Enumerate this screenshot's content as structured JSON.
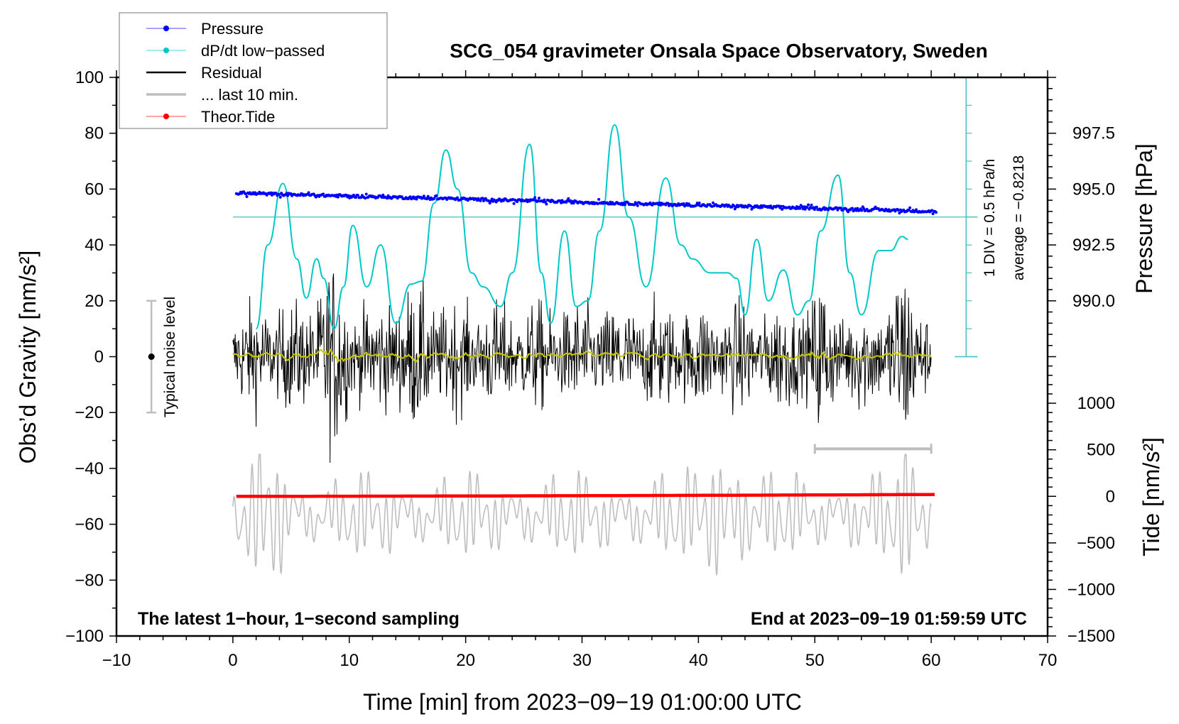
{
  "chart_data": {
    "type": "line",
    "title": "SCG_054 gravimeter Onsala Space Observatory, Sweden",
    "xlabel": "Time [min] from 2023−09−19 01:00:00 UTC",
    "ylabel": "Obs’d Gravity [nm/s²]",
    "ylabel_right_pressure": "Pressure [hPa]",
    "ylabel_right_tide": "Tide [nm/s²]",
    "xlim": [
      -10,
      70
    ],
    "ylim": [
      -100,
      100
    ],
    "x_ticks": [
      -10,
      0,
      10,
      20,
      30,
      40,
      50,
      60,
      70
    ],
    "x_tick_labels": [
      "−10",
      "0",
      "10",
      "20",
      "30",
      "40",
      "50",
      "60",
      "70"
    ],
    "y_ticks": [
      100,
      80,
      60,
      40,
      20,
      0,
      -20,
      -40,
      -60,
      -80,
      -100
    ],
    "y_tick_labels": [
      "100",
      "80",
      "60",
      "40",
      "20",
      "0",
      "−20",
      "−40",
      "−60",
      "−80",
      "−100"
    ],
    "pressure_axis": {
      "ticks": [
        997.5,
        995.0,
        992.5,
        990.0
      ],
      "tick_labels": [
        "997.5",
        "995.0",
        "992.5",
        "990.0"
      ],
      "range": [
        987.5,
        1000
      ]
    },
    "tide_axis": {
      "ticks": [
        1000,
        500,
        0,
        -500,
        -1000,
        -1500
      ],
      "tick_labels": [
        "1000",
        "500",
        "0",
        "−500",
        "−1000",
        "−1500"
      ],
      "range": [
        -1500,
        1500
      ]
    },
    "legend": {
      "placement": "top-left",
      "entries": [
        {
          "label": "Pressure",
          "color": "#0000ff",
          "marker": "dot"
        },
        {
          "label": "dP/dt low−passed",
          "color": "#00c8c8",
          "marker": "dot"
        },
        {
          "label": "Residual",
          "color": "#000000",
          "marker": "line"
        },
        {
          "label": "... last 10 min.",
          "color": "#bebebe",
          "marker": "line"
        },
        {
          "label": "Theor.Tide",
          "color": "#ff0000",
          "marker": "dot"
        }
      ]
    },
    "series": [
      {
        "name": "Pressure",
        "unit": "hPa",
        "color": "#0000ff",
        "t_range": [
          0.3,
          60.5
        ],
        "start": 994.82,
        "end": 994.0,
        "scatter": 0.12
      },
      {
        "name": "dP/dt low-passed",
        "unit": "hPa/h",
        "color": "#00c8c8",
        "t": [
          2.0,
          3.0,
          4.3,
          5.5,
          6.3,
          7.2,
          7.8,
          8.7,
          9.5,
          10.3,
          11.5,
          12.7,
          14.0,
          15.3,
          16.2,
          17.3,
          18.3,
          19.3,
          20.5,
          21.5,
          23.0,
          24.0,
          25.5,
          26.5,
          27.3,
          28.5,
          29.5,
          30.5,
          31.5,
          32.8,
          34.0,
          35.5,
          37.2,
          38.5,
          39.5,
          41.0,
          42.5,
          43.3,
          44.0,
          45.0,
          46.0,
          47.3,
          48.5,
          49.5,
          50.5,
          52.0,
          53.0,
          54.0,
          55.5,
          56.5,
          57.5,
          58.0
        ],
        "values": [
          -2.0,
          -0.5,
          0.6,
          -0.75,
          -1.45,
          -0.75,
          -1.1,
          -2.0,
          -1.25,
          -0.15,
          -1.25,
          -0.5,
          -1.9,
          -1.2,
          -1.15,
          0.25,
          1.2,
          0.5,
          -1.0,
          -1.25,
          -1.6,
          -1.0,
          1.3,
          -1.0,
          -1.9,
          -0.25,
          -1.6,
          -1.5,
          -0.25,
          1.65,
          0.0,
          -1.25,
          0.7,
          -0.5,
          -0.75,
          -1.0,
          -1.0,
          -1.1,
          -1.75,
          -0.4,
          -1.5,
          -0.95,
          -1.75,
          -1.5,
          -0.25,
          0.75,
          -1.0,
          -1.75,
          -0.6,
          -0.6,
          -0.35,
          -0.4
        ]
      },
      {
        "name": "Residual",
        "unit": "nm/s²",
        "color": "#000000",
        "t_range": [
          0,
          60
        ],
        "typical_amplitude": 20,
        "peak_range": [
          -38,
          38
        ]
      },
      {
        "name": "Residual smoothed",
        "unit": "nm/s²",
        "color": "#c8c800",
        "t_range": [
          0,
          60
        ],
        "range": [
          -2,
          3
        ]
      },
      {
        "name": "... last 10 min.",
        "unit": "nm/s²",
        "color": "#bebebe",
        "t_range": [
          0,
          60
        ],
        "center": -63,
        "range": [
          -100,
          -35
        ]
      },
      {
        "name": "Theor.Tide",
        "unit": "nm/s²",
        "color": "#ff0000",
        "t_range": [
          0.3,
          60.5
        ],
        "start": 0,
        "end": 20
      }
    ],
    "dpdt_scale": {
      "label": "1 DIV = 0.5 hPa/h",
      "average_label": "average = −0.8218",
      "x": 63
    },
    "noise_level": {
      "label": "Typical noise level",
      "x": -7,
      "range": [
        -20,
        20
      ]
    },
    "last10_bar": {
      "range": [
        50,
        60
      ],
      "y": -33
    },
    "annotations": {
      "left": "The latest 1−hour, 1−second sampling",
      "right": "End at 2023−09−19 01:59:59 UTC"
    }
  }
}
